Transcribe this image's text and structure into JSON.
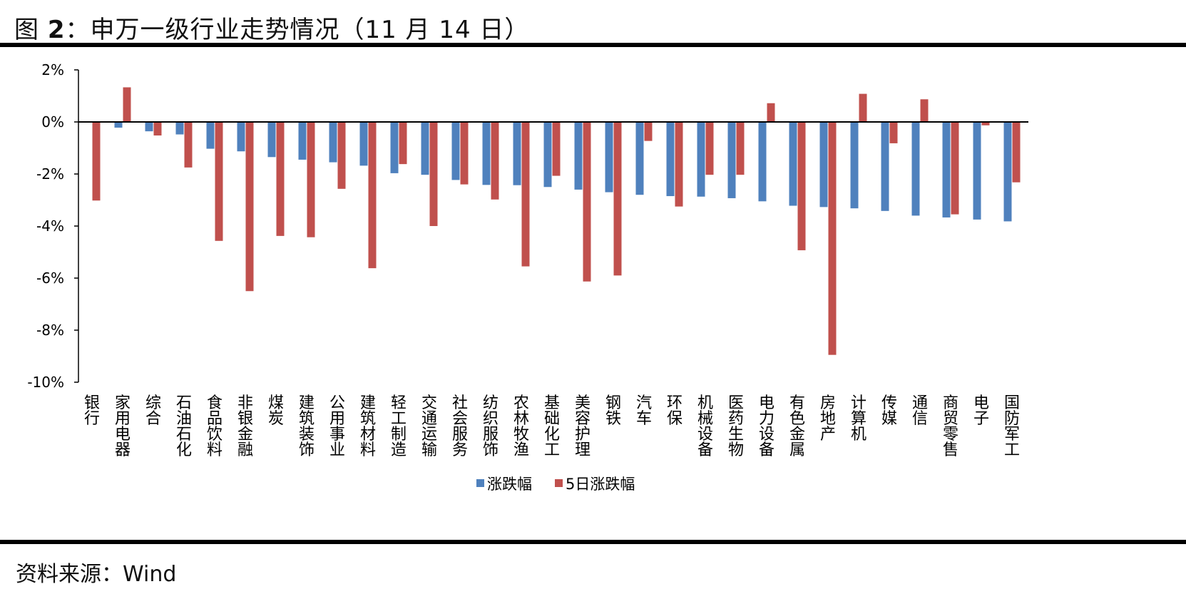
{
  "figure": {
    "title_prefix": "图 ",
    "title_num": "2",
    "title_text": "：申万一级行业走势情况（11 月 14 日）",
    "source": "资料来源：Wind"
  },
  "chart_data": {
    "type": "bar",
    "title": "",
    "xlabel": "",
    "ylabel": "",
    "ylim": [
      -10,
      2
    ],
    "yticks": [
      2,
      0,
      -2,
      -4,
      -6,
      -8,
      -10
    ],
    "ytick_labels": [
      "2%",
      "0%",
      "-2%",
      "-4%",
      "-6%",
      "-8%",
      "-10%"
    ],
    "grid": false,
    "legend_position": "bottom-center",
    "categories": [
      "银行",
      "家用电器",
      "综合",
      "石油石化",
      "食品饮料",
      "非银金融",
      "煤炭",
      "建筑装饰",
      "公用事业",
      "建筑材料",
      "轻工制造",
      "交通运输",
      "社会服务",
      "纺织服饰",
      "农林牧渔",
      "基础化工",
      "美容护理",
      "钢铁",
      "汽车",
      "环保",
      "机械设备",
      "医药生物",
      "电力设备",
      "有色金属",
      "房地产",
      "计算机",
      "传媒",
      "通信",
      "商贸零售",
      "电子",
      "国防军工"
    ],
    "series": [
      {
        "name": "涨跌幅",
        "color": "#4F81BD",
        "values": [
          0.0,
          -0.22,
          -0.36,
          -0.48,
          -1.03,
          -1.13,
          -1.35,
          -1.45,
          -1.55,
          -1.68,
          -1.97,
          -2.03,
          -2.23,
          -2.42,
          -2.43,
          -2.5,
          -2.6,
          -2.7,
          -2.8,
          -2.85,
          -2.87,
          -2.93,
          -3.05,
          -3.22,
          -3.27,
          -3.32,
          -3.42,
          -3.6,
          -3.67,
          -3.75,
          -3.82
        ]
      },
      {
        "name": "5日涨跌幅",
        "color": "#C0504D",
        "values": [
          -3.02,
          1.33,
          -0.52,
          -1.75,
          -4.57,
          -6.5,
          -4.38,
          -4.43,
          -2.57,
          -5.62,
          -1.62,
          -4.0,
          -2.4,
          -2.98,
          -5.55,
          -2.07,
          -6.13,
          -5.9,
          -0.73,
          -3.25,
          -2.03,
          -2.03,
          0.72,
          -4.93,
          -8.95,
          1.08,
          -0.82,
          0.87,
          -3.55,
          -0.13,
          -2.32
        ]
      }
    ]
  }
}
